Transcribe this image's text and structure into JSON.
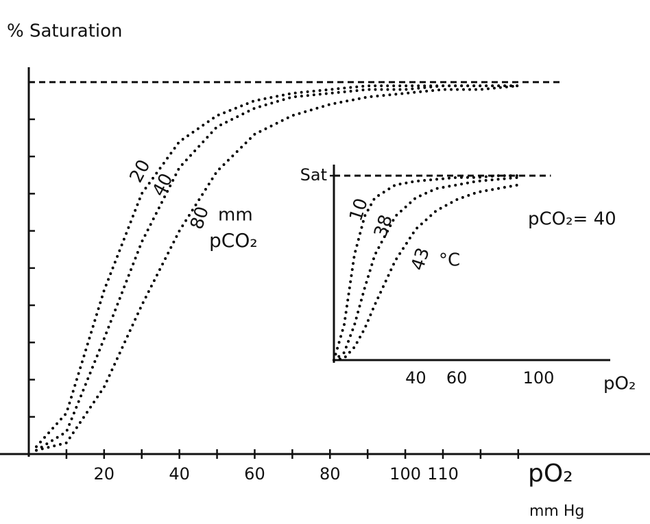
{
  "chart_data": [
    {
      "type": "line",
      "title": "% Saturation",
      "x_label": "pO₂",
      "x_unit": "mm Hg",
      "x": [
        2,
        10,
        20,
        30,
        40,
        50,
        60,
        70,
        80,
        90,
        100,
        110,
        120,
        130
      ],
      "series": [
        {
          "name": "20",
          "color": "#000000",
          "values": [
            2,
            11,
            44,
            70,
            84,
            91,
            95,
            97,
            98,
            99,
            99,
            99,
            99,
            99
          ]
        },
        {
          "name": "40",
          "color": "#000000",
          "values": [
            1,
            6,
            31,
            57,
            77,
            88,
            93,
            96,
            97,
            98,
            98,
            99,
            99,
            99
          ]
        },
        {
          "name": "80",
          "color": "#000000",
          "values": [
            1,
            3,
            18,
            40,
            60,
            76,
            86,
            91,
            94,
            96,
            97,
            98,
            98,
            99
          ]
        }
      ],
      "annotations": [
        "mm",
        "pCO₂"
      ],
      "xlim": [
        0,
        165
      ],
      "ylim": [
        0,
        104
      ],
      "xticks": [
        20,
        40,
        60,
        80,
        100,
        110
      ],
      "xminorticks": [
        10,
        30,
        50,
        70,
        90,
        120,
        130
      ],
      "yticks": [],
      "yminorticks": [
        10,
        20,
        30,
        40,
        50,
        60,
        70,
        80,
        90
      ],
      "hline": {
        "y": 100,
        "xlim": [
          0,
          142
        ]
      }
    },
    {
      "type": "line",
      "x_label": "pO₂",
      "x": [
        0,
        5,
        10,
        15,
        20,
        30,
        40,
        50,
        60,
        70,
        80,
        90
      ],
      "series": [
        {
          "name": "10",
          "color": "#000000",
          "values": [
            0,
            19,
            57,
            78,
            88,
            95,
            97,
            98,
            99,
            99,
            100,
            100
          ]
        },
        {
          "name": "38",
          "color": "#000000",
          "values": [
            0,
            4,
            19,
            39,
            57,
            78,
            88,
            93,
            95,
            97,
            98,
            99
          ]
        },
        {
          "name": "43",
          "color": "#000000",
          "values": [
            0,
            1,
            7,
            17,
            30,
            54,
            71,
            81,
            87,
            91,
            93,
            95
          ]
        }
      ],
      "annotations": [
        "°C",
        "pCO₂= 40"
      ],
      "xlim": [
        0,
        135
      ],
      "ylim": [
        0,
        106
      ],
      "xticks": [
        40,
        60,
        100
      ],
      "xminorticks": [],
      "yticks": [
        {
          "value": 100,
          "label": "Sat"
        }
      ],
      "yminorticks": [],
      "hline": {
        "y": 100,
        "xlim": [
          0,
          106
        ]
      }
    }
  ]
}
